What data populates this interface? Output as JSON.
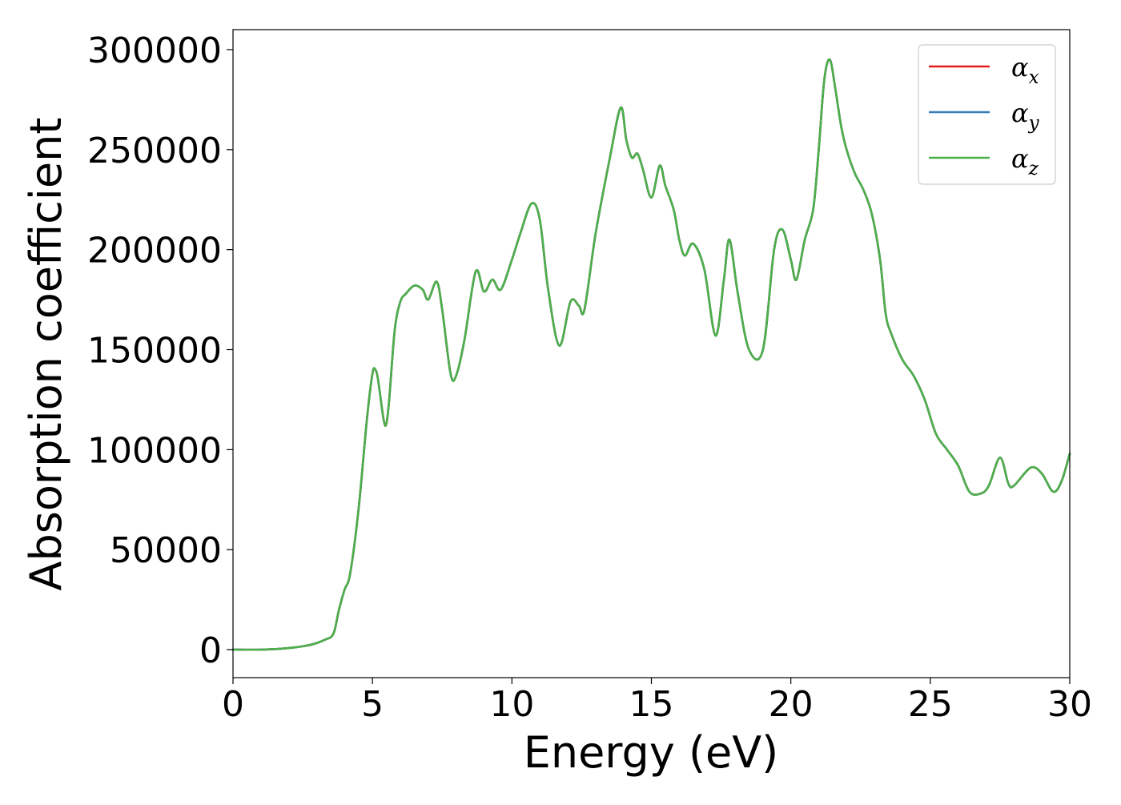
{
  "chart_data": {
    "type": "line",
    "xlabel": "Energy (eV)",
    "ylabel": "Absorption coefficient",
    "xlim": [
      0,
      30
    ],
    "ylim": [
      -14000,
      310000
    ],
    "xticks": [
      0,
      5,
      10,
      15,
      20,
      25,
      30
    ],
    "xtick_labels": [
      "0",
      "5",
      "10",
      "15",
      "20",
      "25",
      "30"
    ],
    "yticks": [
      0,
      50000,
      100000,
      150000,
      200000,
      250000,
      300000
    ],
    "ytick_labels": [
      "0",
      "50000",
      "100000",
      "150000",
      "200000",
      "250000",
      "300000"
    ],
    "grid": false,
    "legend_position": "top-right",
    "series": [
      {
        "name": "αx",
        "symbol": "α",
        "subscript": "x",
        "color": "#e41a1c",
        "x": [
          0,
          1,
          2,
          2.8,
          3.3,
          3.6,
          3.8,
          4.0,
          4.2,
          4.5,
          4.8,
          5.0,
          5.1,
          5.2,
          5.4,
          5.5,
          5.6,
          5.8,
          6.0,
          6.2,
          6.5,
          6.8,
          7.0,
          7.3,
          7.5,
          7.8,
          8.0,
          8.3,
          8.7,
          9.0,
          9.3,
          9.6,
          10.0,
          10.3,
          10.7,
          11.0,
          11.3,
          11.7,
          12.1,
          12.4,
          12.6,
          13.0,
          13.5,
          13.9,
          14.1,
          14.3,
          14.5,
          14.7,
          15.0,
          15.3,
          15.5,
          15.8,
          16.0,
          16.2,
          16.5,
          16.9,
          17.3,
          17.6,
          17.8,
          18.1,
          18.5,
          19.0,
          19.4,
          19.7,
          20.0,
          20.2,
          20.5,
          20.8,
          21.0,
          21.2,
          21.4,
          21.6,
          21.8,
          22.0,
          22.3,
          22.6,
          22.9,
          23.2,
          23.4,
          23.6,
          24.0,
          24.4,
          24.8,
          25.2,
          25.6,
          26.0,
          26.4,
          26.8,
          27.1,
          27.5,
          27.8,
          28.0,
          28.6,
          29.0,
          29.4,
          29.7,
          30.0
        ],
        "values": [
          0,
          0,
          800,
          2500,
          5000,
          8000,
          20000,
          30000,
          38000,
          70000,
          115000,
          138000,
          140000,
          135000,
          115000,
          113000,
          125000,
          160000,
          174000,
          178000,
          182000,
          180000,
          175000,
          184000,
          170000,
          138000,
          137000,
          155000,
          189000,
          179000,
          185000,
          180000,
          195000,
          208000,
          223000,
          215000,
          180000,
          152000,
          174000,
          172000,
          170000,
          208000,
          245000,
          271000,
          255000,
          246000,
          248000,
          240000,
          226000,
          242000,
          232000,
          220000,
          205000,
          197000,
          203000,
          190000,
          157000,
          185000,
          205000,
          178000,
          150000,
          150000,
          200000,
          210000,
          195000,
          185000,
          205000,
          220000,
          250000,
          285000,
          295000,
          280000,
          262000,
          250000,
          238000,
          230000,
          218000,
          195000,
          168000,
          158000,
          145000,
          137000,
          125000,
          108000,
          100000,
          92000,
          79000,
          78000,
          82000,
          96000,
          83000,
          82000,
          91000,
          88000,
          79000,
          84000,
          98000
        ]
      },
      {
        "name": "αy",
        "symbol": "α",
        "subscript": "y",
        "color": "#377eb8",
        "x": [
          0,
          1,
          2,
          2.8,
          3.3,
          3.6,
          3.8,
          4.0,
          4.2,
          4.5,
          4.8,
          5.0,
          5.1,
          5.2,
          5.4,
          5.5,
          5.6,
          5.8,
          6.0,
          6.2,
          6.5,
          6.8,
          7.0,
          7.3,
          7.5,
          7.8,
          8.0,
          8.3,
          8.7,
          9.0,
          9.3,
          9.6,
          10.0,
          10.3,
          10.7,
          11.0,
          11.3,
          11.7,
          12.1,
          12.4,
          12.6,
          13.0,
          13.5,
          13.9,
          14.1,
          14.3,
          14.5,
          14.7,
          15.0,
          15.3,
          15.5,
          15.8,
          16.0,
          16.2,
          16.5,
          16.9,
          17.3,
          17.6,
          17.8,
          18.1,
          18.5,
          19.0,
          19.4,
          19.7,
          20.0,
          20.2,
          20.5,
          20.8,
          21.0,
          21.2,
          21.4,
          21.6,
          21.8,
          22.0,
          22.3,
          22.6,
          22.9,
          23.2,
          23.4,
          23.6,
          24.0,
          24.4,
          24.8,
          25.2,
          25.6,
          26.0,
          26.4,
          26.8,
          27.1,
          27.5,
          27.8,
          28.0,
          28.6,
          29.0,
          29.4,
          29.7,
          30.0
        ],
        "values": [
          0,
          0,
          800,
          2500,
          5000,
          8000,
          20000,
          30000,
          38000,
          70000,
          115000,
          138000,
          140000,
          135000,
          115000,
          113000,
          125000,
          160000,
          174000,
          178000,
          182000,
          180000,
          175000,
          184000,
          170000,
          138000,
          137000,
          155000,
          189000,
          179000,
          185000,
          180000,
          195000,
          208000,
          223000,
          215000,
          180000,
          152000,
          174000,
          172000,
          170000,
          208000,
          245000,
          271000,
          255000,
          246000,
          248000,
          240000,
          226000,
          242000,
          232000,
          220000,
          205000,
          197000,
          203000,
          190000,
          157000,
          185000,
          205000,
          178000,
          150000,
          150000,
          200000,
          210000,
          195000,
          185000,
          205000,
          220000,
          250000,
          285000,
          295000,
          280000,
          262000,
          250000,
          238000,
          230000,
          218000,
          195000,
          168000,
          158000,
          145000,
          137000,
          125000,
          108000,
          100000,
          92000,
          79000,
          78000,
          82000,
          96000,
          83000,
          82000,
          91000,
          88000,
          79000,
          84000,
          98000
        ]
      },
      {
        "name": "αz",
        "symbol": "α",
        "subscript": "z",
        "color": "#4daf4a",
        "x": [
          0,
          1,
          2,
          2.8,
          3.3,
          3.6,
          3.8,
          4.0,
          4.2,
          4.5,
          4.8,
          5.0,
          5.1,
          5.2,
          5.4,
          5.5,
          5.6,
          5.8,
          6.0,
          6.2,
          6.5,
          6.8,
          7.0,
          7.3,
          7.5,
          7.8,
          8.0,
          8.3,
          8.7,
          9.0,
          9.3,
          9.6,
          10.0,
          10.3,
          10.7,
          11.0,
          11.3,
          11.7,
          12.1,
          12.4,
          12.6,
          13.0,
          13.5,
          13.9,
          14.1,
          14.3,
          14.5,
          14.7,
          15.0,
          15.3,
          15.5,
          15.8,
          16.0,
          16.2,
          16.5,
          16.9,
          17.3,
          17.6,
          17.8,
          18.1,
          18.5,
          19.0,
          19.4,
          19.7,
          20.0,
          20.2,
          20.5,
          20.8,
          21.0,
          21.2,
          21.4,
          21.6,
          21.8,
          22.0,
          22.3,
          22.6,
          22.9,
          23.2,
          23.4,
          23.6,
          24.0,
          24.4,
          24.8,
          25.2,
          25.6,
          26.0,
          26.4,
          26.8,
          27.1,
          27.5,
          27.8,
          28.0,
          28.6,
          29.0,
          29.4,
          29.7,
          30.0
        ],
        "values": [
          0,
          0,
          800,
          2500,
          5000,
          8000,
          20000,
          30000,
          38000,
          70000,
          115000,
          138000,
          140000,
          135000,
          115000,
          113000,
          125000,
          160000,
          174000,
          178000,
          182000,
          180000,
          175000,
          184000,
          170000,
          138000,
          137000,
          155000,
          189000,
          179000,
          185000,
          180000,
          195000,
          208000,
          223000,
          215000,
          180000,
          152000,
          174000,
          172000,
          170000,
          208000,
          245000,
          271000,
          255000,
          246000,
          248000,
          240000,
          226000,
          242000,
          232000,
          220000,
          205000,
          197000,
          203000,
          190000,
          157000,
          185000,
          205000,
          178000,
          150000,
          150000,
          200000,
          210000,
          195000,
          185000,
          205000,
          220000,
          250000,
          285000,
          295000,
          280000,
          262000,
          250000,
          238000,
          230000,
          218000,
          195000,
          168000,
          158000,
          145000,
          137000,
          125000,
          108000,
          100000,
          92000,
          79000,
          78000,
          82000,
          96000,
          83000,
          82000,
          91000,
          88000,
          79000,
          84000,
          98000
        ]
      }
    ]
  }
}
